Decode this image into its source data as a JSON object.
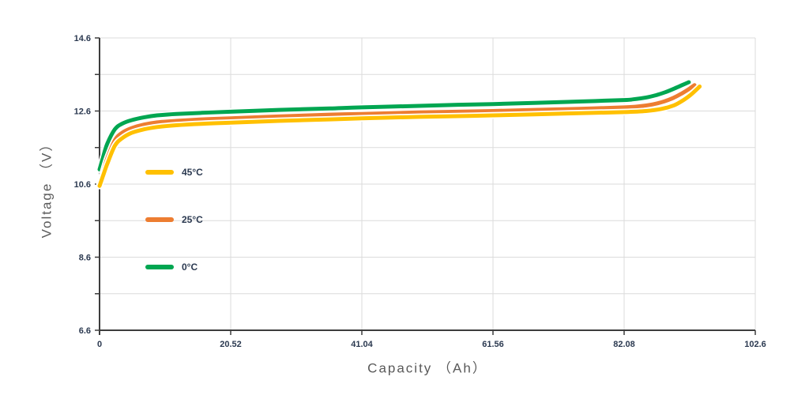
{
  "chart_data": {
    "type": "line",
    "title": "",
    "xlabel": "Capacity （Ah）",
    "ylabel": "Voltage （V）",
    "xlim": [
      0,
      102.6
    ],
    "ylim": [
      6.6,
      14.6
    ],
    "x_ticks": [
      0,
      20.52,
      41.04,
      61.56,
      82.08,
      102.6
    ],
    "x_tick_labels": [
      "0",
      "20.52",
      "41.04",
      "61.56",
      "82.08",
      "102.6"
    ],
    "y_ticks_labeled": [
      6.6,
      8.6,
      10.6,
      12.6,
      14.6
    ],
    "y_tick_labels": [
      "6.6",
      "8.6",
      "10.6",
      "12.6",
      "14.6"
    ],
    "y_minor_step": 1.0,
    "grid": true,
    "legend_position": "inside-left",
    "series": [
      {
        "name": "45°C",
        "color": "#FFC000",
        "points": [
          [
            0,
            10.55
          ],
          [
            0.5,
            10.8
          ],
          [
            1.2,
            11.15
          ],
          [
            2.4,
            11.65
          ],
          [
            3.5,
            11.85
          ],
          [
            5,
            12.0
          ],
          [
            7,
            12.1
          ],
          [
            9,
            12.16
          ],
          [
            12,
            12.21
          ],
          [
            16,
            12.25
          ],
          [
            20.52,
            12.28
          ],
          [
            28,
            12.33
          ],
          [
            36,
            12.37
          ],
          [
            41.04,
            12.4
          ],
          [
            50,
            12.44
          ],
          [
            56,
            12.46
          ],
          [
            61.56,
            12.48
          ],
          [
            68,
            12.51
          ],
          [
            75,
            12.54
          ],
          [
            82.08,
            12.57
          ],
          [
            85.5,
            12.6
          ],
          [
            88,
            12.66
          ],
          [
            89.8,
            12.75
          ],
          [
            91.2,
            12.88
          ],
          [
            92.4,
            13.03
          ],
          [
            93.3,
            13.17
          ],
          [
            93.9,
            13.27
          ]
        ]
      },
      {
        "name": "25°C",
        "color": "#ED7D31",
        "points": [
          [
            0,
            10.6
          ],
          [
            0.5,
            10.9
          ],
          [
            1.2,
            11.3
          ],
          [
            2.4,
            11.8
          ],
          [
            3.5,
            12.0
          ],
          [
            5,
            12.13
          ],
          [
            7,
            12.23
          ],
          [
            9,
            12.29
          ],
          [
            12,
            12.33
          ],
          [
            16,
            12.37
          ],
          [
            20.52,
            12.4
          ],
          [
            28,
            12.45
          ],
          [
            36,
            12.5
          ],
          [
            41.04,
            12.52
          ],
          [
            50,
            12.56
          ],
          [
            56,
            12.58
          ],
          [
            61.56,
            12.6
          ],
          [
            68,
            12.63
          ],
          [
            75,
            12.66
          ],
          [
            82.08,
            12.7
          ],
          [
            84.5,
            12.73
          ],
          [
            86.5,
            12.78
          ],
          [
            88.3,
            12.86
          ],
          [
            89.8,
            12.96
          ],
          [
            91.1,
            13.08
          ],
          [
            92.2,
            13.2
          ],
          [
            93.1,
            13.31
          ]
        ]
      },
      {
        "name": "0°C",
        "color": "#00A651",
        "points": [
          [
            0,
            11.0
          ],
          [
            0.5,
            11.3
          ],
          [
            1.2,
            11.7
          ],
          [
            2.4,
            12.1
          ],
          [
            3.5,
            12.25
          ],
          [
            5,
            12.35
          ],
          [
            7,
            12.43
          ],
          [
            9,
            12.48
          ],
          [
            12,
            12.52
          ],
          [
            16,
            12.55
          ],
          [
            20.52,
            12.58
          ],
          [
            28,
            12.63
          ],
          [
            36,
            12.67
          ],
          [
            41.04,
            12.7
          ],
          [
            50,
            12.74
          ],
          [
            56,
            12.77
          ],
          [
            61.56,
            12.79
          ],
          [
            68,
            12.82
          ],
          [
            75,
            12.86
          ],
          [
            82.08,
            12.9
          ],
          [
            83.5,
            12.92
          ],
          [
            85.5,
            12.97
          ],
          [
            87.2,
            13.04
          ],
          [
            88.6,
            13.12
          ],
          [
            90,
            13.22
          ],
          [
            91.3,
            13.32
          ],
          [
            92.2,
            13.39
          ]
        ]
      }
    ]
  },
  "colors": {
    "grid": "#dbdbdb",
    "axis": "#3d3d3d",
    "tick_label": "#2b3950",
    "axis_title": "#595959",
    "background": "#ffffff",
    "line_casing": "#ffffff"
  }
}
